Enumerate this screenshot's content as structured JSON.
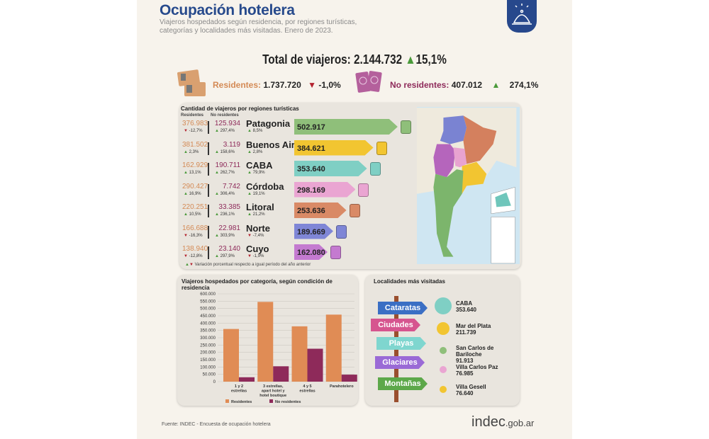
{
  "header": {
    "title": "Ocupación hotelera",
    "subtitle": "Viajeros hospedados según residencia, por regiones turísticas, categorías y localidades más visitadas. Enero de 2023.",
    "icon": "service-bell-icon"
  },
  "total": {
    "label": "Total de viajeros:",
    "value": "2.144.732",
    "change": "15,1%",
    "trend": "up"
  },
  "residentes": {
    "label": "Residentes:",
    "value": "1.737.720",
    "change": "-1,0%",
    "trend": "down",
    "icon": "id-card-icon"
  },
  "no_residentes": {
    "label": "No residentes:",
    "value": "407.012",
    "change": "274,1%",
    "trend": "up",
    "icon": "passport-icon"
  },
  "regions": {
    "title": "Cantidad de viajeros por regiones turísticas",
    "col_res": "Residentes",
    "col_nores": "No residentes",
    "footnote": "Variación porcentual respecto a igual período del año anterior",
    "items": [
      {
        "name": "Patagonia",
        "res": "376.983",
        "res_pct": "-12,7%",
        "res_trend": "down",
        "nores": "125.934",
        "nores_pct": "297,4%",
        "nores_trend": "up",
        "total": "502.917",
        "total_value": 502917,
        "total_pct": "8,5%",
        "total_trend": "up",
        "color": "#8fbf7a",
        "icon": "backpack-icon"
      },
      {
        "name": "Buenos Aires",
        "res": "381.502",
        "res_pct": "2,3%",
        "res_trend": "up",
        "nores": "3.119",
        "nores_pct": "158,6%",
        "nores_trend": "up",
        "total": "384.621",
        "total_value": 384621,
        "total_pct": "2,8%",
        "total_trend": "up",
        "color": "#f2c531",
        "icon": "suitcase-icon"
      },
      {
        "name": "CABA",
        "res": "162.929",
        "res_pct": "13,1%",
        "res_trend": "up",
        "nores": "190.711",
        "nores_pct": "262,7%",
        "nores_trend": "up",
        "total": "353.640",
        "total_value": 353640,
        "total_pct": "79,9%",
        "total_trend": "up",
        "color": "#7fcfc4",
        "icon": "trolley-bag-icon"
      },
      {
        "name": "Córdoba",
        "res": "290.427",
        "res_pct": "16,9%",
        "res_trend": "up",
        "nores": "7.742",
        "nores_pct": "306,4%",
        "nores_trend": "up",
        "total": "298.169",
        "total_value": 298169,
        "total_pct": "19,1%",
        "total_trend": "up",
        "color": "#eaa5d2",
        "icon": "duffel-bag-icon"
      },
      {
        "name": "Litoral",
        "res": "220.251",
        "res_pct": "10,5%",
        "res_trend": "up",
        "nores": "33.385",
        "nores_pct": "236,1%",
        "nores_trend": "up",
        "total": "253.636",
        "total_value": 253636,
        "total_pct": "21,2%",
        "total_trend": "up",
        "color": "#d98a66",
        "icon": "travel-bag-icon"
      },
      {
        "name": "Norte",
        "res": "166.688",
        "res_pct": "-16,3%",
        "res_trend": "down",
        "nores": "22.981",
        "nores_pct": "303,9%",
        "nores_trend": "up",
        "total": "189.669",
        "total_value": 189669,
        "total_pct": "-7,4%",
        "total_trend": "down",
        "color": "#7f86d6",
        "icon": "rolling-suitcase-icon"
      },
      {
        "name": "Cuyo",
        "res": "138.940",
        "res_pct": "-12,8%",
        "res_trend": "down",
        "nores": "23.140",
        "nores_pct": "297,9%",
        "nores_trend": "up",
        "total": "162.080",
        "total_value": 162080,
        "total_pct": "-1,9%",
        "total_trend": "down",
        "color": "#c47ad0",
        "icon": "carry-on-icon"
      }
    ]
  },
  "chart_data": {
    "type": "bar",
    "title": "Viajeros hospedados por categoría, según condición de residencia",
    "categories": [
      "1 y 2 estrellas",
      "3 estrellas, apart hotel y hotel boutique",
      "4 y 5 estrellas",
      "Parahotelero"
    ],
    "series": [
      {
        "name": "Residentes",
        "values": [
          360000,
          545000,
          378000,
          458000
        ],
        "color": "#e08c55"
      },
      {
        "name": "No residentes",
        "values": [
          30000,
          105000,
          225000,
          48000
        ],
        "color": "#8e2a5a"
      }
    ],
    "ylim": [
      0,
      600000
    ],
    "yticks": [
      "0",
      "50.000",
      "100.000",
      "150.000",
      "200.000",
      "250.000",
      "300.000",
      "350.000",
      "400.000",
      "450.000",
      "500.000",
      "550.000",
      "600.000"
    ],
    "grid": true,
    "legend": "bottom"
  },
  "localidades": {
    "title": "Localidades más visitadas",
    "signs": [
      {
        "label": "Cataratas",
        "color": "#3b6fc4"
      },
      {
        "label": "Ciudades",
        "color": "#d6558f"
      },
      {
        "label": "Playas",
        "color": "#7fd6cf"
      },
      {
        "label": "Glaciares",
        "color": "#9a6ad6"
      },
      {
        "label": "Montañas",
        "color": "#5da84a"
      }
    ],
    "items": [
      {
        "name": "CABA",
        "value": "353.640",
        "color": "#7fcfc4"
      },
      {
        "name": "Mar del Plata",
        "value": "211.739",
        "color": "#f2c531"
      },
      {
        "name": "San Carlos de Bariloche",
        "value": "91.913",
        "color": "#8fbf7a"
      },
      {
        "name": "Villa Carlos Paz",
        "value": "76.985",
        "color": "#eaa5d2"
      },
      {
        "name": "Villa Gesell",
        "value": "76.640",
        "color": "#f2c531"
      }
    ]
  },
  "footer": {
    "source": "Fuente: INDEC - Encuesta de ocupación hotelera",
    "logo": "indec.gob.ar"
  }
}
